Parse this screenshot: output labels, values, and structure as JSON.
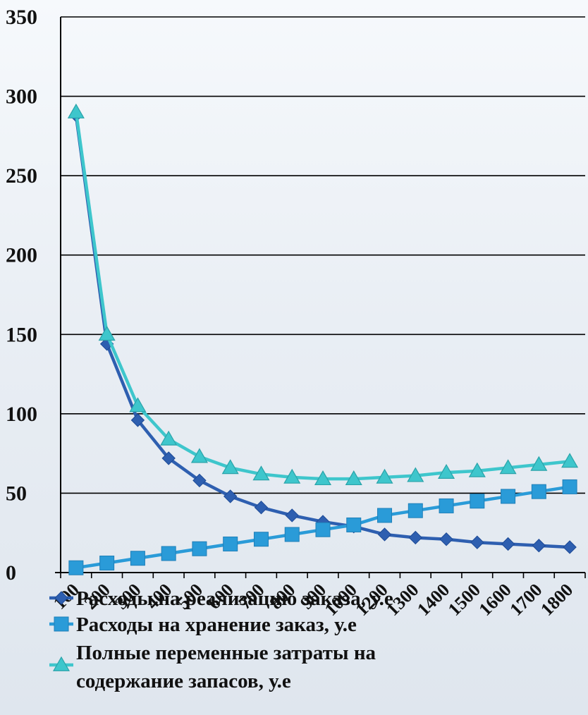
{
  "chart_data": {
    "type": "line",
    "title": "",
    "xlabel": "",
    "ylabel": "",
    "categories": [
      "100",
      "200",
      "300",
      "400",
      "500",
      "600",
      "700",
      "800",
      "900",
      "1000",
      "1200",
      "1300",
      "1400",
      "1500",
      "1600",
      "1700",
      "1800"
    ],
    "ylim": [
      0,
      350
    ],
    "yticks": [
      "0",
      "50",
      "100",
      "150",
      "200",
      "250",
      "300",
      "350"
    ],
    "grid": true,
    "legend_position": "bottom",
    "series": [
      {
        "name": "Расходы на реализацию заказа, у.е",
        "color": "#2e5fb0",
        "marker": "diamond",
        "values": [
          288,
          144,
          96,
          72,
          58,
          48,
          41,
          36,
          32,
          29,
          24,
          22,
          21,
          19,
          18,
          17,
          16
        ]
      },
      {
        "name": "Расходы на хранение заказ, у.е",
        "color": "#2a9bd8",
        "marker": "square",
        "values": [
          3,
          6,
          9,
          12,
          15,
          18,
          21,
          24,
          27,
          30,
          36,
          39,
          42,
          45,
          48,
          51,
          54
        ]
      },
      {
        "name": "Полные переменные затраты на содержание запасов, у.е",
        "name_lines": [
          "Полные переменные затраты на",
          "содержание запасов, у.е"
        ],
        "color": "#3ec6cc",
        "marker": "triangle",
        "values": [
          290,
          150,
          105,
          84,
          73,
          66,
          62,
          60,
          59,
          59,
          60,
          61,
          63,
          64,
          66,
          68,
          70
        ]
      }
    ]
  }
}
